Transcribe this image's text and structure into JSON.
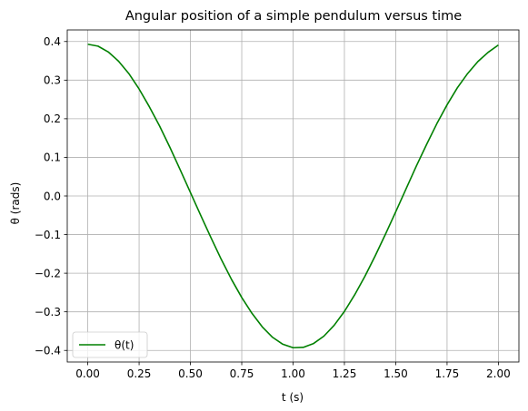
{
  "chart_data": {
    "type": "line",
    "title": "Angular position of a simple pendulum versus time",
    "xlabel": "t (s)",
    "ylabel": "θ (rads)",
    "xlim": [
      -0.1,
      2.1
    ],
    "ylim": [
      -0.43,
      0.43
    ],
    "grid": true,
    "legend_position": "lower-left",
    "x_ticks": [
      0.0,
      0.25,
      0.5,
      0.75,
      1.0,
      1.25,
      1.5,
      1.75,
      2.0
    ],
    "x_tick_labels": [
      "0.00",
      "0.25",
      "0.50",
      "0.75",
      "1.00",
      "1.25",
      "1.50",
      "1.75",
      "2.00"
    ],
    "y_ticks": [
      -0.4,
      -0.3,
      -0.2,
      -0.1,
      0.0,
      0.1,
      0.2,
      0.3,
      0.4
    ],
    "y_tick_labels": [
      "−0.4",
      "−0.3",
      "−0.2",
      "−0.1",
      "0.0",
      "0.1",
      "0.2",
      "0.3",
      "0.4"
    ],
    "series": [
      {
        "name": "θ(t)",
        "color": "#008000",
        "x": [
          0.0,
          0.05,
          0.1,
          0.15,
          0.2,
          0.25,
          0.3,
          0.35,
          0.4,
          0.45,
          0.5,
          0.55,
          0.6,
          0.65,
          0.7,
          0.75,
          0.8,
          0.85,
          0.9,
          0.95,
          1.0,
          1.05,
          1.1,
          1.15,
          1.2,
          1.25,
          1.3,
          1.35,
          1.4,
          1.45,
          1.5,
          1.55,
          1.6,
          1.65,
          1.7,
          1.75,
          1.8,
          1.85,
          1.9,
          1.95,
          2.0
        ],
        "y": [
          0.393,
          0.388,
          0.373,
          0.349,
          0.317,
          0.277,
          0.231,
          0.181,
          0.126,
          0.068,
          0.009,
          -0.05,
          -0.108,
          -0.164,
          -0.216,
          -0.263,
          -0.304,
          -0.339,
          -0.366,
          -0.384,
          -0.393,
          -0.392,
          -0.382,
          -0.363,
          -0.335,
          -0.299,
          -0.256,
          -0.208,
          -0.155,
          -0.099,
          -0.041,
          0.018,
          0.077,
          0.133,
          0.187,
          0.236,
          0.28,
          0.317,
          0.348,
          0.372,
          0.391
        ]
      }
    ]
  }
}
